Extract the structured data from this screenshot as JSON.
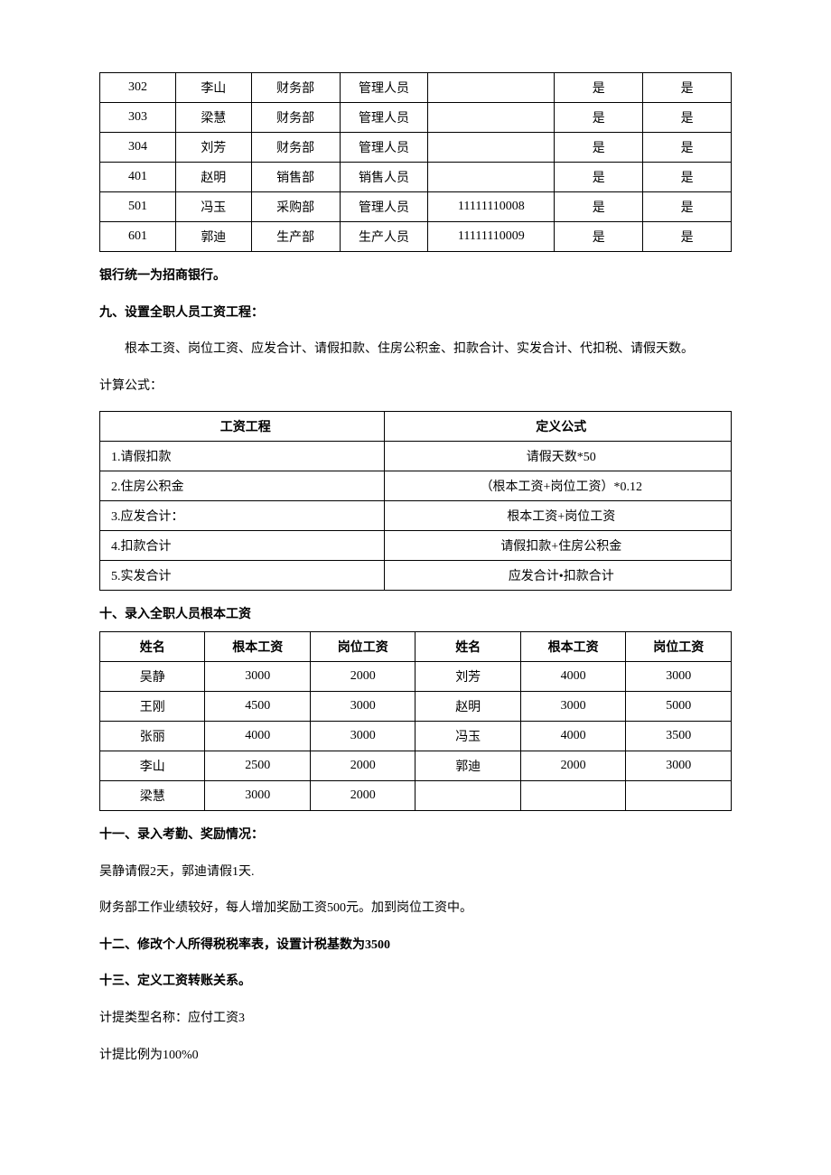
{
  "table1": {
    "rows": [
      [
        "302",
        "李山",
        "财务部",
        "管理人员",
        "",
        "是",
        "是"
      ],
      [
        "303",
        "梁慧",
        "财务部",
        "管理人员",
        "",
        "是",
        "是"
      ],
      [
        "304",
        "刘芳",
        "财务部",
        "管理人员",
        "",
        "是",
        "是"
      ],
      [
        "401",
        "赵明",
        "销售部",
        "销售人员",
        "",
        "是",
        "是"
      ],
      [
        "501",
        "冯玉",
        "采购部",
        "管理人员",
        "11111110008",
        "是",
        "是"
      ],
      [
        "601",
        "郭迪",
        "生产部",
        "生产人员",
        "11111110009",
        "是",
        "是"
      ]
    ]
  },
  "text": {
    "bank_note": "银行统一为招商银行。",
    "sec9_title": "九、设置全职人员工资工程：",
    "sec9_body": "根本工资、岗位工资、应发合计、请假扣款、住房公积金、扣款合计、实发合计、代扣税、请假天数。",
    "calc_label": "计算公式：",
    "sec10_title": "十、录入全职人员根本工资",
    "sec11_title": "十一、录入考勤、奖励情况：",
    "sec11_l1": "吴静请假2天，郭迪请假1天.",
    "sec11_l2": "财务部工作业绩较好，每人增加奖励工资500元。加到岗位工资中。",
    "sec12_title": "十二、修改个人所得税税率表，设置计税基数为3500",
    "sec13_title": "十三、定义工资转账关系。",
    "sec13_l1": "计提类型名称：应付工资3",
    "sec13_l2": "计提比例为100%0"
  },
  "table2": {
    "header": [
      "工资工程",
      "定义公式"
    ],
    "rows": [
      [
        "1.请假扣款",
        "请假天数*50"
      ],
      [
        "2.住房公积金",
        "（根本工资+岗位工资）*0.12"
      ],
      [
        "3.应发合计：",
        "根本工资+岗位工资"
      ],
      [
        "4.扣款合计",
        "请假扣款+住房公积金"
      ],
      [
        "5.实发合计",
        "应发合计•扣款合计"
      ]
    ]
  },
  "table3": {
    "header": [
      "姓名",
      "根本工资",
      "岗位工资",
      "姓名",
      "根本工资",
      "岗位工资"
    ],
    "rows": [
      [
        "吴静",
        "3000",
        "2000",
        "刘芳",
        "4000",
        "3000"
      ],
      [
        "王刚",
        "4500",
        "3000",
        "赵明",
        "3000",
        "5000"
      ],
      [
        "张丽",
        "4000",
        "3000",
        "冯玉",
        "4000",
        "3500"
      ],
      [
        "李山",
        "2500",
        "2000",
        "郭迪",
        "2000",
        "3000"
      ],
      [
        "梁慧",
        "3000",
        "2000",
        "",
        "",
        ""
      ]
    ]
  }
}
